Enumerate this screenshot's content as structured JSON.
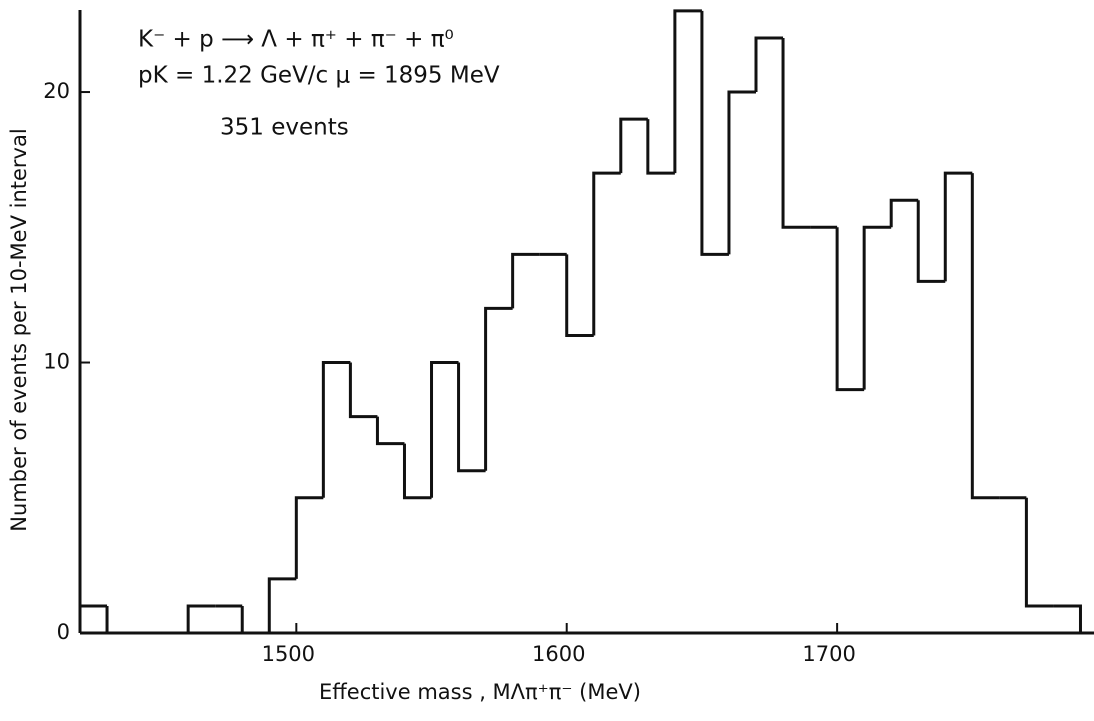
{
  "chart_data": {
    "type": "histogram",
    "annotations": [
      "K⁻ + p ⟶ Λ + π⁺ + π⁻ + π⁰",
      "pK = 1.22 GeV/c   μ = 1895 MeV",
      "351 events"
    ],
    "x_label": "Effective mass , MΛπ⁺π⁻ (MeV)",
    "y_label": "Number of events per 10-MeV interval",
    "bins": [
      1420,
      1430,
      1440,
      1450,
      1460,
      1470,
      1480,
      1490,
      1500,
      1510,
      1520,
      1530,
      1540,
      1550,
      1560,
      1570,
      1580,
      1590,
      1600,
      1610,
      1620,
      1630,
      1640,
      1650,
      1660,
      1670,
      1680,
      1690,
      1700,
      1710,
      1720,
      1730,
      1740,
      1750,
      1760,
      1770,
      1780,
      1790
    ],
    "values": [
      1,
      0,
      0,
      0,
      1,
      1,
      0,
      2,
      5,
      10,
      8,
      7,
      5,
      10,
      6,
      12,
      14,
      14,
      11,
      17,
      19,
      17,
      23,
      14,
      20,
      22,
      15,
      15,
      9,
      15,
      16,
      13,
      17,
      5,
      5,
      1,
      1
    ],
    "color": "#111111",
    "xlim": [
      1420,
      1795
    ],
    "xticks": [
      1500,
      1600,
      1700
    ],
    "ylim": [
      0,
      23
    ],
    "yticks": [
      0,
      10,
      20
    ]
  }
}
